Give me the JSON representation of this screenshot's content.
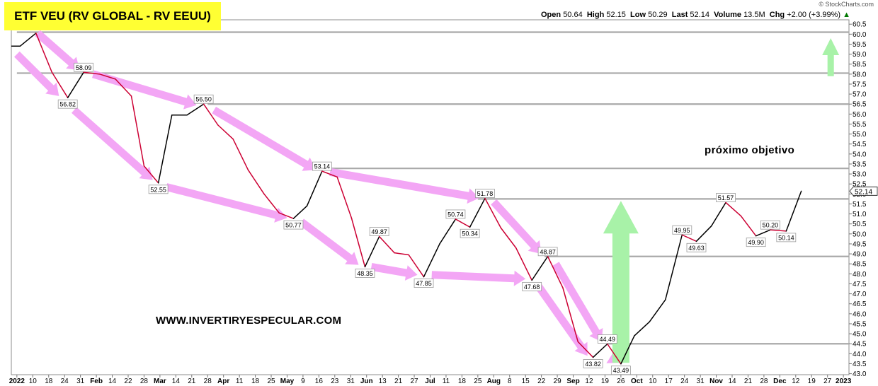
{
  "header": {
    "title": "ETF VEU (RV GLOBAL - RV EEUU)",
    "credit": "© StockCharts.com",
    "quote": {
      "open_label": "Open",
      "open": "50.64",
      "high_label": "High",
      "high": "52.15",
      "low_label": "Low",
      "low": "50.29",
      "last_label": "Last",
      "last": "52.14",
      "volume_label": "Volume",
      "volume": "13.5M",
      "chg_label": "Chg",
      "chg": "+2.00 (+3.99%)",
      "arrow": "▲"
    }
  },
  "watermark": "WWW.INVERTIRYESPECULAR.COM",
  "target_note": "próximo objetivo",
  "colors": {
    "up": "#000000",
    "down": "#cc0033",
    "arrow_down": "#f3a6f5",
    "arrow_up": "#a8f2a8",
    "hline": "#a9a9a9",
    "title_bg": "#ffff33"
  },
  "chart_data": {
    "type": "line",
    "ylim": [
      42.95,
      60.72
    ],
    "yticks": [
      43.0,
      43.5,
      44.0,
      44.5,
      45.0,
      45.5,
      46.0,
      46.5,
      47.0,
      47.5,
      48.0,
      48.5,
      49.0,
      49.5,
      50.0,
      50.5,
      51.0,
      51.5,
      52.0,
      52.5,
      53.0,
      53.5,
      54.0,
      54.5,
      55.0,
      55.5,
      56.0,
      56.5,
      57.0,
      57.5,
      58.0,
      58.5,
      59.0,
      59.5,
      60.0,
      60.5
    ],
    "last_value": "52.14",
    "x_ticks": [
      {
        "i": 0,
        "label": "2022",
        "bold": true
      },
      {
        "i": 1,
        "label": "10"
      },
      {
        "i": 2,
        "label": "18"
      },
      {
        "i": 3,
        "label": "24"
      },
      {
        "i": 4,
        "label": "31"
      },
      {
        "i": 5,
        "label": "Feb",
        "bold": true
      },
      {
        "i": 6,
        "label": "14"
      },
      {
        "i": 7,
        "label": "22"
      },
      {
        "i": 8,
        "label": "28"
      },
      {
        "i": 9,
        "label": "Mar",
        "bold": true
      },
      {
        "i": 10,
        "label": "14"
      },
      {
        "i": 11,
        "label": "21"
      },
      {
        "i": 12,
        "label": "28"
      },
      {
        "i": 13,
        "label": "Apr",
        "bold": true
      },
      {
        "i": 14,
        "label": "11"
      },
      {
        "i": 15,
        "label": "18"
      },
      {
        "i": 16,
        "label": "25"
      },
      {
        "i": 17,
        "label": "May",
        "bold": true
      },
      {
        "i": 18,
        "label": "9"
      },
      {
        "i": 19,
        "label": "16"
      },
      {
        "i": 20,
        "label": "23"
      },
      {
        "i": 21,
        "label": "31"
      },
      {
        "i": 22,
        "label": "Jun",
        "bold": true
      },
      {
        "i": 23,
        "label": "13"
      },
      {
        "i": 24,
        "label": "21"
      },
      {
        "i": 25,
        "label": "27"
      },
      {
        "i": 26,
        "label": "Jul",
        "bold": true
      },
      {
        "i": 27,
        "label": "11"
      },
      {
        "i": 28,
        "label": "18"
      },
      {
        "i": 29,
        "label": "25"
      },
      {
        "i": 30,
        "label": "Aug",
        "bold": true
      },
      {
        "i": 31,
        "label": "8"
      },
      {
        "i": 32,
        "label": "15"
      },
      {
        "i": 33,
        "label": "22"
      },
      {
        "i": 34,
        "label": "29"
      },
      {
        "i": 35,
        "label": "Sep",
        "bold": true
      },
      {
        "i": 36,
        "label": "12"
      },
      {
        "i": 37,
        "label": "19"
      },
      {
        "i": 38,
        "label": "26"
      },
      {
        "i": 39,
        "label": "Oct",
        "bold": true
      },
      {
        "i": 40,
        "label": "10"
      },
      {
        "i": 41,
        "label": "17"
      },
      {
        "i": 42,
        "label": "24"
      },
      {
        "i": 43,
        "label": "31"
      },
      {
        "i": 44,
        "label": "Nov",
        "bold": true
      },
      {
        "i": 45,
        "label": "14"
      },
      {
        "i": 46,
        "label": "21"
      },
      {
        "i": 47,
        "label": "28"
      },
      {
        "i": 48,
        "label": "Dec",
        "bold": true
      },
      {
        "i": 49,
        "label": "12"
      },
      {
        "i": 50,
        "label": "19"
      },
      {
        "i": 51,
        "label": "27"
      },
      {
        "i": 52,
        "label": "2023",
        "bold": true
      }
    ],
    "x_index_min": -0.35,
    "x_index_max": 52.35,
    "series": [
      {
        "points": [
          {
            "i": -0.35,
            "v": 59.4
          },
          {
            "i": 0.2,
            "v": 59.4
          },
          {
            "i": 1.2,
            "v": 60.05
          },
          {
            "i": 2.2,
            "v": 58.1
          },
          {
            "i": 3.2,
            "v": 56.82
          },
          {
            "i": 4.2,
            "v": 58.09
          },
          {
            "i": 5.2,
            "v": 58.0
          },
          {
            "i": 6.2,
            "v": 57.75
          },
          {
            "i": 7.2,
            "v": 56.9
          },
          {
            "i": 8.0,
            "v": 53.4
          },
          {
            "i": 8.9,
            "v": 52.55
          },
          {
            "i": 9.75,
            "v": 55.95
          },
          {
            "i": 10.7,
            "v": 55.95
          },
          {
            "i": 11.75,
            "v": 56.5
          },
          {
            "i": 12.65,
            "v": 55.45
          },
          {
            "i": 13.6,
            "v": 54.75
          },
          {
            "i": 14.55,
            "v": 53.2
          },
          {
            "i": 15.55,
            "v": 52.0
          },
          {
            "i": 16.5,
            "v": 51.05
          },
          {
            "i": 17.4,
            "v": 50.77
          },
          {
            "i": 18.25,
            "v": 51.4
          },
          {
            "i": 19.2,
            "v": 53.14
          },
          {
            "i": 20.15,
            "v": 52.85
          },
          {
            "i": 21.05,
            "v": 50.8
          },
          {
            "i": 21.9,
            "v": 48.35
          },
          {
            "i": 22.8,
            "v": 49.87
          },
          {
            "i": 23.75,
            "v": 49.05
          },
          {
            "i": 24.65,
            "v": 48.95
          },
          {
            "i": 25.6,
            "v": 47.85
          },
          {
            "i": 26.6,
            "v": 49.5
          },
          {
            "i": 27.6,
            "v": 50.74
          },
          {
            "i": 28.5,
            "v": 50.34
          },
          {
            "i": 29.45,
            "v": 51.78
          },
          {
            "i": 30.45,
            "v": 50.3
          },
          {
            "i": 31.4,
            "v": 49.3
          },
          {
            "i": 32.4,
            "v": 47.68
          },
          {
            "i": 33.4,
            "v": 48.87
          },
          {
            "i": 34.35,
            "v": 47.3
          },
          {
            "i": 35.3,
            "v": 44.6
          },
          {
            "i": 36.25,
            "v": 43.82
          },
          {
            "i": 37.15,
            "v": 44.49
          },
          {
            "i": 38.0,
            "v": 43.49
          },
          {
            "i": 38.85,
            "v": 44.9
          },
          {
            "i": 39.8,
            "v": 45.6
          },
          {
            "i": 40.8,
            "v": 46.7
          },
          {
            "i": 41.85,
            "v": 49.95
          },
          {
            "i": 42.75,
            "v": 49.63
          },
          {
            "i": 43.7,
            "v": 50.4
          },
          {
            "i": 44.6,
            "v": 51.57
          },
          {
            "i": 45.55,
            "v": 50.9
          },
          {
            "i": 46.5,
            "v": 49.9
          },
          {
            "i": 47.4,
            "v": 50.2
          },
          {
            "i": 48.4,
            "v": 50.14
          },
          {
            "i": 49.35,
            "v": 52.14
          }
        ]
      }
    ],
    "annotations": [
      {
        "i": 3.2,
        "v": 56.82,
        "text": "56.82",
        "pos": "below"
      },
      {
        "i": 4.2,
        "v": 58.09,
        "text": "58.09",
        "pos": "above"
      },
      {
        "i": 8.9,
        "v": 52.55,
        "text": "52.55",
        "pos": "below"
      },
      {
        "i": 11.75,
        "v": 56.5,
        "text": "56.50",
        "pos": "above"
      },
      {
        "i": 17.4,
        "v": 50.77,
        "text": "50.77",
        "pos": "below"
      },
      {
        "i": 19.2,
        "v": 53.14,
        "text": "53.14",
        "pos": "above"
      },
      {
        "i": 21.9,
        "v": 48.35,
        "text": "48.35",
        "pos": "below"
      },
      {
        "i": 22.8,
        "v": 49.87,
        "text": "49.87",
        "pos": "above"
      },
      {
        "i": 25.6,
        "v": 47.85,
        "text": "47.85",
        "pos": "below"
      },
      {
        "i": 27.6,
        "v": 50.74,
        "text": "50.74",
        "pos": "above"
      },
      {
        "i": 28.5,
        "v": 50.34,
        "text": "50.34",
        "pos": "below"
      },
      {
        "i": 29.45,
        "v": 51.78,
        "text": "51.78",
        "pos": "above"
      },
      {
        "i": 32.4,
        "v": 47.68,
        "text": "47.68",
        "pos": "below"
      },
      {
        "i": 33.4,
        "v": 48.87,
        "text": "48.87",
        "pos": "above"
      },
      {
        "i": 36.25,
        "v": 43.82,
        "text": "43.82",
        "pos": "below"
      },
      {
        "i": 37.15,
        "v": 44.49,
        "text": "44.49",
        "pos": "above"
      },
      {
        "i": 38.0,
        "v": 43.49,
        "text": "43.49",
        "pos": "below"
      },
      {
        "i": 41.85,
        "v": 49.95,
        "text": "49.95",
        "pos": "above"
      },
      {
        "i": 42.75,
        "v": 49.63,
        "text": "49.63",
        "pos": "below"
      },
      {
        "i": 44.6,
        "v": 51.57,
        "text": "51.57",
        "pos": "above"
      },
      {
        "i": 46.5,
        "v": 49.9,
        "text": "49.90",
        "pos": "below"
      },
      {
        "i": 47.4,
        "v": 50.2,
        "text": "50.20",
        "pos": "above"
      },
      {
        "i": 48.4,
        "v": 50.14,
        "text": "50.14",
        "pos": "below"
      }
    ],
    "horizontal_levels": [
      {
        "v": 60.1,
        "from_i": 0.0
      },
      {
        "v": 58.05,
        "from_i": 0.0
      },
      {
        "v": 56.5,
        "from_i": 12.0
      },
      {
        "v": 53.28,
        "from_i": 18.9
      },
      {
        "v": 51.75,
        "from_i": 29.0
      },
      {
        "v": 48.87,
        "from_i": 33.2
      },
      {
        "v": 44.5,
        "from_i": 37.2
      }
    ],
    "trend_arrows_down": [
      {
        "from": [
          0.0,
          59.0
        ],
        "to": [
          2.65,
          56.9
        ]
      },
      {
        "from": [
          1.3,
          60.05
        ],
        "to": [
          3.95,
          58.2
        ]
      },
      {
        "from": [
          3.6,
          56.2
        ],
        "to": [
          8.55,
          52.7
        ]
      },
      {
        "from": [
          4.8,
          58.0
        ],
        "to": [
          11.3,
          56.45
        ]
      },
      {
        "from": [
          9.4,
          52.35
        ],
        "to": [
          17.0,
          50.8
        ]
      },
      {
        "from": [
          12.4,
          56.2
        ],
        "to": [
          18.8,
          53.2
        ]
      },
      {
        "from": [
          17.9,
          50.6
        ],
        "to": [
          21.5,
          48.45
        ]
      },
      {
        "from": [
          19.7,
          53.1
        ],
        "to": [
          29.1,
          51.8
        ]
      },
      {
        "from": [
          22.3,
          48.35
        ],
        "to": [
          25.2,
          47.95
        ]
      },
      {
        "from": [
          26.1,
          47.95
        ],
        "to": [
          32.0,
          47.75
        ]
      },
      {
        "from": [
          30.0,
          51.6
        ],
        "to": [
          33.0,
          49.0
        ]
      },
      {
        "from": [
          32.8,
          47.4
        ],
        "to": [
          35.9,
          43.9
        ]
      },
      {
        "from": [
          33.9,
          48.5
        ],
        "to": [
          36.8,
          44.6
        ]
      },
      {
        "from": [
          37.35,
          43.85
        ],
        "to": [
          37.95,
          43.55
        ]
      }
    ],
    "trend_arrow_up": [
      {
        "from": [
          38.0,
          43.55
        ],
        "to": [
          38.0,
          51.65
        ]
      },
      {
        "from": [
          51.2,
          57.9
        ],
        "to": [
          51.2,
          59.8
        ]
      }
    ]
  }
}
